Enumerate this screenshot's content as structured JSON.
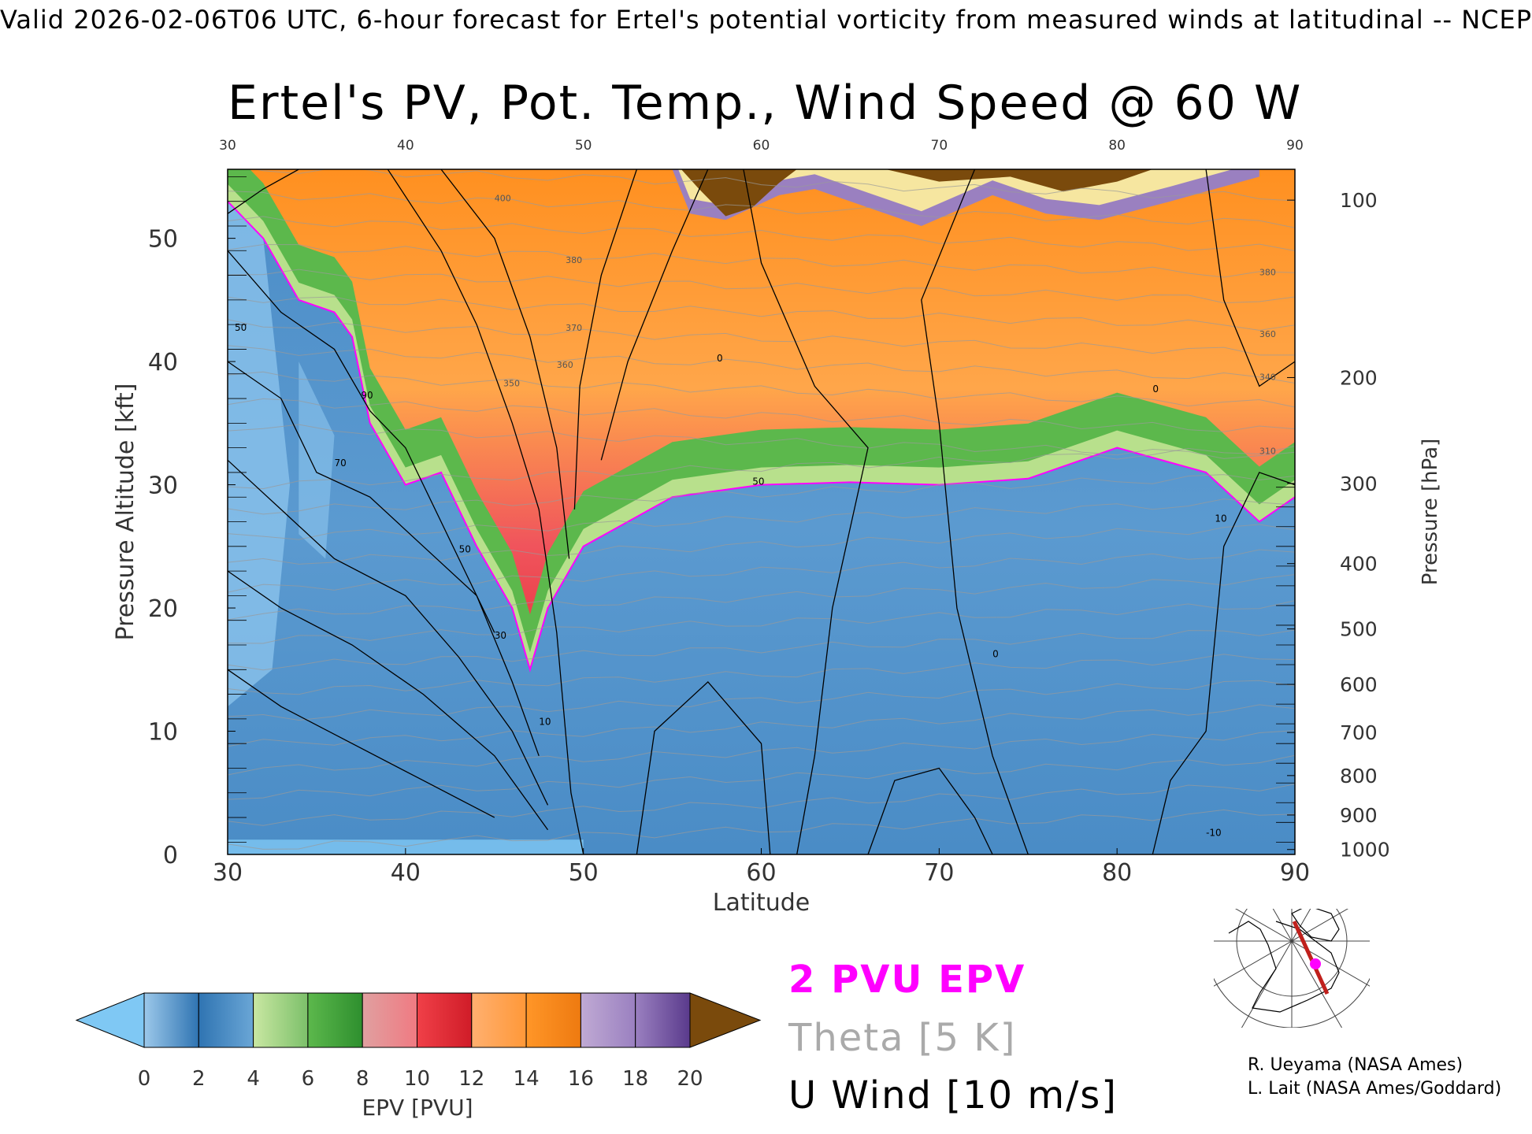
{
  "header": {
    "text": "Valid 2026-02-06T06 UTC, 6-hour forecast for Ertel's potential vorticity from measured winds at latitudinal -- NCEP"
  },
  "chart_data": {
    "type": "heatmap",
    "title": "Ertel's PV, Pot. Temp., Wind Speed @ 60 W",
    "xlabel": "Latitude",
    "ylabel": "Pressure Altitude [kft]",
    "y2label": "Pressure [hPa]",
    "xlim": [
      30,
      90
    ],
    "ylim": [
      0,
      55.6
    ],
    "x_ticks": [
      30,
      40,
      50,
      60,
      70,
      80,
      90
    ],
    "y_ticks": [
      0,
      10,
      20,
      30,
      40,
      50
    ],
    "pressure_ticks": [
      {
        "hPa": 100,
        "kft": 53.1
      },
      {
        "hPa": 200,
        "kft": 38.7
      },
      {
        "hPa": 300,
        "kft": 30.1
      },
      {
        "hPa": 400,
        "kft": 23.6
      },
      {
        "hPa": 500,
        "kft": 18.3
      },
      {
        "hPa": 600,
        "kft": 13.8
      },
      {
        "hPa": 700,
        "kft": 9.9
      },
      {
        "hPa": 800,
        "kft": 6.4
      },
      {
        "hPa": 900,
        "kft": 3.2
      },
      {
        "hPa": 1000,
        "kft": 0.4
      }
    ],
    "colorbar": {
      "label": "EPV [PVU]",
      "ticks": [
        0,
        2,
        4,
        6,
        8,
        10,
        12,
        14,
        16,
        18,
        20
      ],
      "under_color": "#7fc8f4",
      "over_color": "#7a4a0c",
      "bins": [
        [
          "#9cc8ea",
          "#2f74b2"
        ],
        [
          "#2f74b2",
          "#6aa6d6"
        ],
        [
          "#c9e7a2",
          "#7cc06a"
        ],
        [
          "#5cb84c",
          "#2e8f2e"
        ],
        [
          "#e0a0a0",
          "#f07a82"
        ],
        [
          "#f04048",
          "#d01c28"
        ],
        [
          "#ffb070",
          "#ff9838"
        ],
        [
          "#ff9628",
          "#ee7a10"
        ],
        [
          "#c0aad4",
          "#9a80c0"
        ],
        [
          "#9a80c0",
          "#5a3a8c"
        ],
        [
          "#fff6b0",
          "#f2d890"
        ]
      ]
    },
    "epv_field": {
      "note": "approximate 2-PVU dynamical tropopause altitude (kft) by latitude",
      "latitudes": [
        30,
        32,
        34,
        36,
        37,
        38,
        40,
        42,
        44,
        46,
        47,
        48,
        50,
        55,
        60,
        65,
        70,
        75,
        80,
        85,
        88,
        90
      ],
      "tropopause_kft": [
        53,
        50,
        45,
        44,
        42,
        35,
        30,
        31,
        25,
        20,
        15,
        20,
        25,
        29,
        30,
        30.2,
        30,
        30.5,
        33,
        31,
        27,
        29
      ]
    },
    "theta_labels": [
      {
        "lat": 45,
        "kft": 53,
        "text": "400"
      },
      {
        "lat": 49,
        "kft": 48,
        "text": "380"
      },
      {
        "lat": 49,
        "kft": 42.5,
        "text": "370"
      },
      {
        "lat": 48.5,
        "kft": 39.5,
        "text": "360"
      },
      {
        "lat": 45.5,
        "kft": 38,
        "text": "350"
      },
      {
        "lat": 88,
        "kft": 47,
        "text": "380"
      },
      {
        "lat": 88,
        "kft": 42,
        "text": "360"
      },
      {
        "lat": 88,
        "kft": 38.5,
        "text": "340"
      },
      {
        "lat": 88,
        "kft": 32.5,
        "text": "310"
      }
    ],
    "u_wind_labels": [
      {
        "lat": 30.4,
        "kft": 42.5,
        "text": "50"
      },
      {
        "lat": 37.5,
        "kft": 37,
        "text": "90"
      },
      {
        "lat": 36,
        "kft": 31.5,
        "text": "70"
      },
      {
        "lat": 43,
        "kft": 24.5,
        "text": "50"
      },
      {
        "lat": 45,
        "kft": 17.5,
        "text": "30"
      },
      {
        "lat": 47.5,
        "kft": 10.5,
        "text": "10"
      },
      {
        "lat": 59.5,
        "kft": 30,
        "text": "50"
      },
      {
        "lat": 57.5,
        "kft": 40,
        "text": "0"
      },
      {
        "lat": 73,
        "kft": 16,
        "text": "0"
      },
      {
        "lat": 85.5,
        "kft": 27,
        "text": "10"
      },
      {
        "lat": 85,
        "kft": 1.5,
        "text": "-10"
      },
      {
        "lat": 82,
        "kft": 37.5,
        "text": "0"
      }
    ],
    "legend": {
      "pvu": "2 PVU EPV",
      "theta": "Theta [5 K]",
      "wind": "U Wind [10 m/s]"
    }
  },
  "inset_map": {
    "description_icon": "polar-stereographic-map-icon",
    "section_line_color": "#c0201c",
    "marker_color": "#ff00ff"
  },
  "credits": {
    "line1": "R. Ueyama (NASA Ames)",
    "line2": "L. Lait (NASA Ames/Goddard)"
  }
}
